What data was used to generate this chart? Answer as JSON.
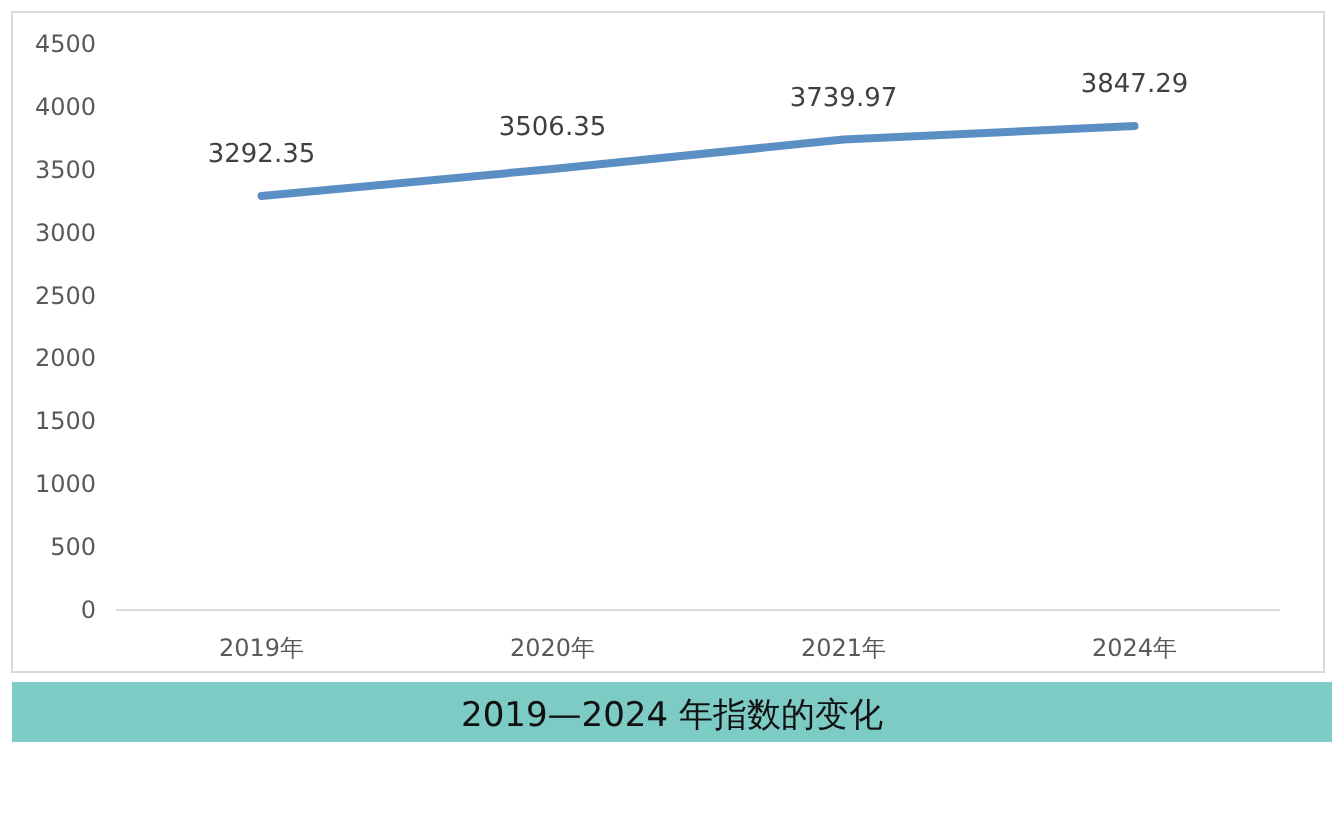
{
  "chart_data": {
    "type": "line",
    "title": "2019—2024 年指数的变化",
    "categories": [
      "2019年",
      "2020年",
      "2021年",
      "2024年"
    ],
    "series": [
      {
        "color": "#5b8fc3",
        "values": [
          3292.35,
          3506.35,
          3739.97,
          3847.29
        ]
      }
    ],
    "ylim": [
      0,
      4500
    ],
    "yticks": [
      0,
      500,
      1000,
      1500,
      2000,
      2500,
      3000,
      3500,
      4000,
      4500
    ],
    "data_labels": true
  }
}
